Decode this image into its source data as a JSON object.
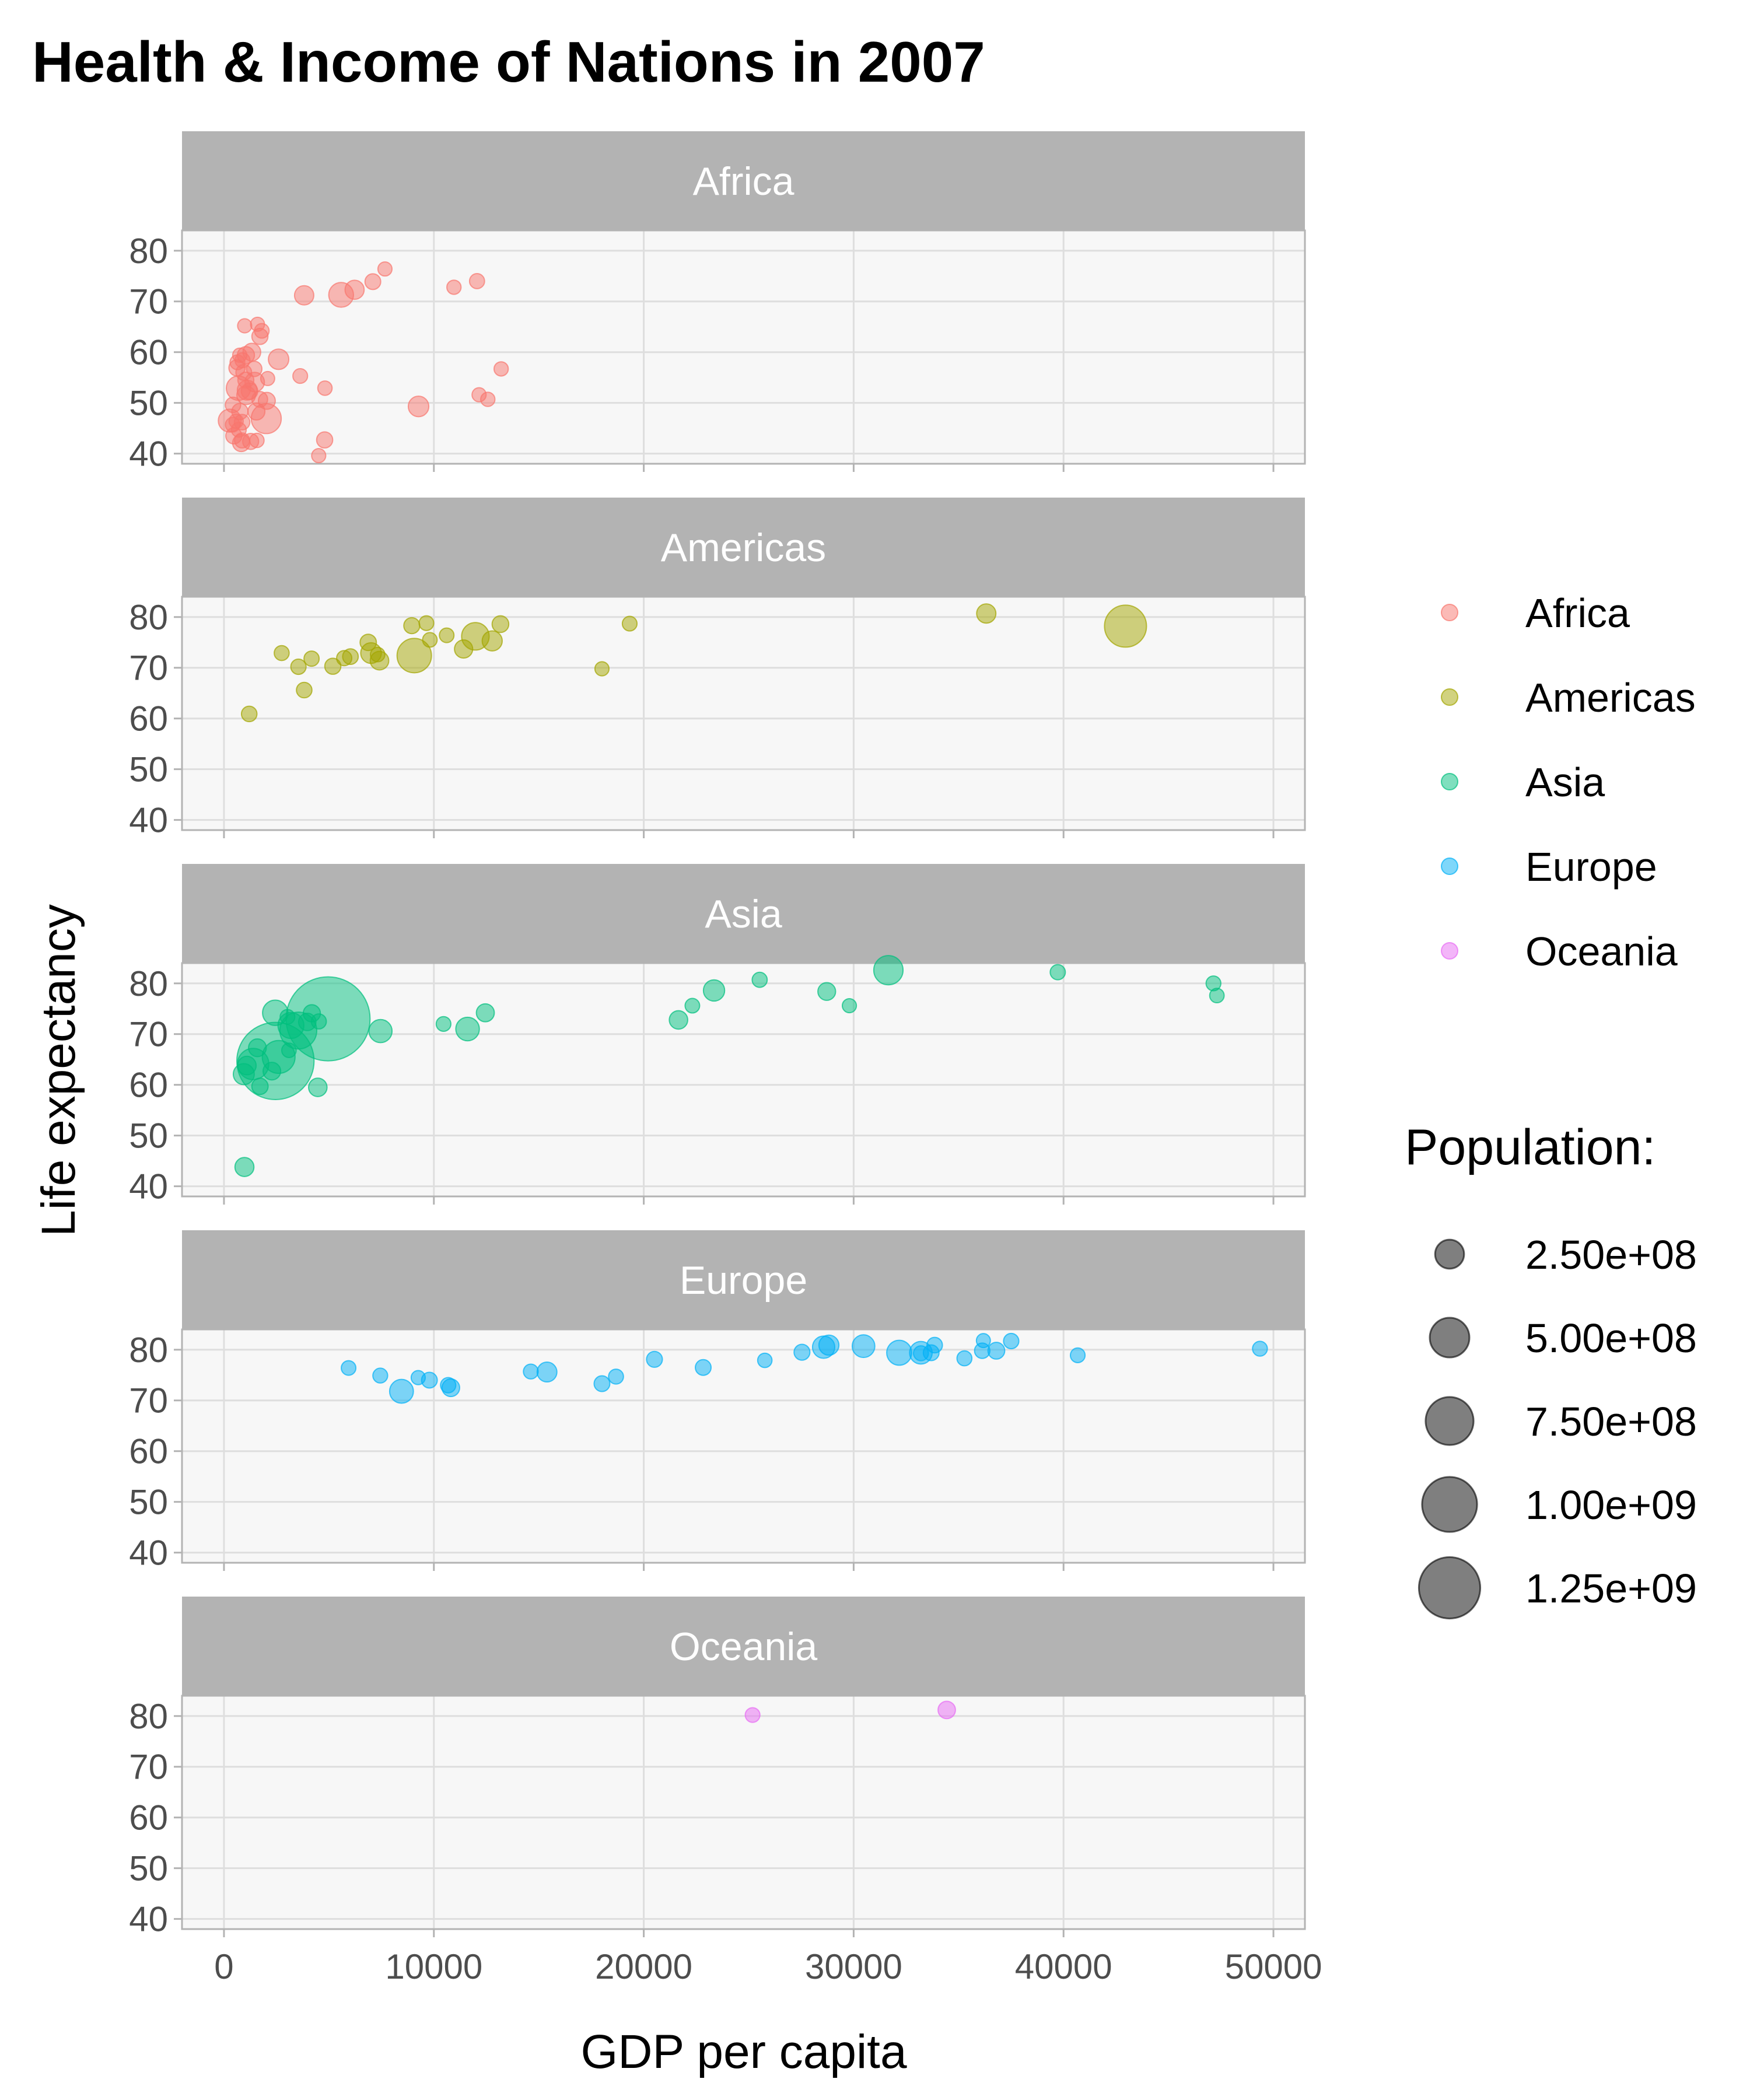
{
  "chart_data": {
    "type": "scatter",
    "title": "Health & Income of Nations in 2007",
    "xlabel": "GDP per capita",
    "ylabel": "Life expectancy",
    "xlim": [
      -2000,
      51500
    ],
    "ylim": [
      38,
      84
    ],
    "x_ticks": [
      0,
      10000,
      20000,
      30000,
      40000,
      50000
    ],
    "y_ticks": [
      40,
      50,
      60,
      70,
      80
    ],
    "grid": true,
    "facet_by": "continent",
    "color_legend": {
      "position": "right",
      "entries": [
        {
          "name": "Africa",
          "color": "#F8766D"
        },
        {
          "name": "Americas",
          "color": "#A3A500"
        },
        {
          "name": "Asia",
          "color": "#00BF7D"
        },
        {
          "name": "Europe",
          "color": "#00B0F6"
        },
        {
          "name": "Oceania",
          "color": "#E76BF3"
        }
      ]
    },
    "size_legend": {
      "title": "Population:",
      "position": "right",
      "entries": [
        {
          "label": "2.50e+08",
          "value": 250000000
        },
        {
          "label": "5.00e+08",
          "value": 500000000
        },
        {
          "label": "7.50e+08",
          "value": 750000000
        },
        {
          "label": "1.00e+09",
          "value": 1000000000
        },
        {
          "label": "1.25e+09",
          "value": 1250000000
        }
      ]
    },
    "size_range_pop": [
      200000,
      1320000000
    ],
    "point_alpha": 0.5,
    "facets": [
      {
        "name": "Africa",
        "points": [
          {
            "x": 6223,
            "y": 72.3,
            "pop": 33300000
          },
          {
            "x": 4797,
            "y": 42.7,
            "pop": 12400000
          },
          {
            "x": 1441,
            "y": 56.7,
            "pop": 8100000
          },
          {
            "x": 12570,
            "y": 50.7,
            "pop": 1600000
          },
          {
            "x": 1217,
            "y": 52.3,
            "pop": 14300000
          },
          {
            "x": 430,
            "y": 49.6,
            "pop": 8400000
          },
          {
            "x": 2042,
            "y": 50.4,
            "pop": 17700000
          },
          {
            "x": 706,
            "y": 44.7,
            "pop": 4400000
          },
          {
            "x": 1704,
            "y": 50.7,
            "pop": 10200000
          },
          {
            "x": 986,
            "y": 65.2,
            "pop": 700000
          },
          {
            "x": 278,
            "y": 46.5,
            "pop": 64600000
          },
          {
            "x": 3633,
            "y": 55.3,
            "pop": 3800000
          },
          {
            "x": 1545,
            "y": 48.3,
            "pop": 18000000
          },
          {
            "x": 2082,
            "y": 54.8,
            "pop": 500000
          },
          {
            "x": 5581,
            "y": 71.3,
            "pop": 80300000
          },
          {
            "x": 12154,
            "y": 51.6,
            "pop": 600000
          },
          {
            "x": 641,
            "y": 58.0,
            "pop": 4900000
          },
          {
            "x": 691,
            "y": 52.9,
            "pop": 76500000
          },
          {
            "x": 13206,
            "y": 56.7,
            "pop": 1500000
          },
          {
            "x": 753,
            "y": 59.4,
            "pop": 1700000
          },
          {
            "x": 1327,
            "y": 60.0,
            "pop": 22900000
          },
          {
            "x": 943,
            "y": 56.0,
            "pop": 9900000
          },
          {
            "x": 579,
            "y": 46.4,
            "pop": 1500000
          },
          {
            "x": 1463,
            "y": 54.1,
            "pop": 35600000
          },
          {
            "x": 1569,
            "y": 42.6,
            "pop": 2000000
          },
          {
            "x": 415,
            "y": 45.7,
            "pop": 3200000
          },
          {
            "x": 12057,
            "y": 74.0,
            "pop": 6000000
          },
          {
            "x": 1045,
            "y": 59.4,
            "pop": 19200000
          },
          {
            "x": 759,
            "y": 48.3,
            "pop": 13300000
          },
          {
            "x": 1042,
            "y": 54.5,
            "pop": 12000000
          },
          {
            "x": 1803,
            "y": 64.2,
            "pop": 3300000
          },
          {
            "x": 10957,
            "y": 72.8,
            "pop": 1300000
          },
          {
            "x": 3820,
            "y": 71.2,
            "pop": 33800000
          },
          {
            "x": 824,
            "y": 42.1,
            "pop": 20000000
          },
          {
            "x": 4811,
            "y": 52.9,
            "pop": 2100000
          },
          {
            "x": 620,
            "y": 56.9,
            "pop": 12900000
          },
          {
            "x": 2014,
            "y": 46.9,
            "pop": 135000000
          },
          {
            "x": 7670,
            "y": 76.4,
            "pop": 800000
          },
          {
            "x": 863,
            "y": 46.2,
            "pop": 8900000
          },
          {
            "x": 1598,
            "y": 65.5,
            "pop": 200000
          },
          {
            "x": 1712,
            "y": 63.1,
            "pop": 12300000
          },
          {
            "x": 863,
            "y": 42.6,
            "pop": 6100000
          },
          {
            "x": 9270,
            "y": 49.3,
            "pop": 43900000
          },
          {
            "x": 2602,
            "y": 58.6,
            "pop": 42300000
          },
          {
            "x": 4513,
            "y": 39.6,
            "pop": 1100000
          },
          {
            "x": 1107,
            "y": 52.5,
            "pop": 38100000
          },
          {
            "x": 883,
            "y": 58.4,
            "pop": 5700000
          },
          {
            "x": 7093,
            "y": 73.9,
            "pop": 10300000
          },
          {
            "x": 1056,
            "y": 51.5,
            "pop": 29200000
          },
          {
            "x": 1271,
            "y": 42.4,
            "pop": 11700000
          },
          {
            "x": 470,
            "y": 43.5,
            "pop": 12300000
          }
        ]
      },
      {
        "name": "Americas",
        "points": [
          {
            "x": 12779,
            "y": 75.3,
            "pop": 40300000
          },
          {
            "x": 3822,
            "y": 65.6,
            "pop": 9100000
          },
          {
            "x": 9066,
            "y": 72.4,
            "pop": 190000000
          },
          {
            "x": 36319,
            "y": 80.7,
            "pop": 33400000
          },
          {
            "x": 13172,
            "y": 78.6,
            "pop": 16300000
          },
          {
            "x": 7007,
            "y": 72.9,
            "pop": 44200000
          },
          {
            "x": 9645,
            "y": 78.8,
            "pop": 4100000
          },
          {
            "x": 8948,
            "y": 78.3,
            "pop": 11400000
          },
          {
            "x": 6025,
            "y": 72.2,
            "pop": 9300000
          },
          {
            "x": 6873,
            "y": 75.0,
            "pop": 13800000
          },
          {
            "x": 5728,
            "y": 71.9,
            "pop": 6900000
          },
          {
            "x": 5186,
            "y": 70.3,
            "pop": 12600000
          },
          {
            "x": 1202,
            "y": 60.9,
            "pop": 8500000
          },
          {
            "x": 3548,
            "y": 70.2,
            "pop": 7500000
          },
          {
            "x": 7321,
            "y": 72.6,
            "pop": 2800000
          },
          {
            "x": 11978,
            "y": 76.2,
            "pop": 108700000
          },
          {
            "x": 2749,
            "y": 72.9,
            "pop": 5700000
          },
          {
            "x": 9809,
            "y": 75.5,
            "pop": 3200000
          },
          {
            "x": 4173,
            "y": 71.8,
            "pop": 6700000
          },
          {
            "x": 7409,
            "y": 71.4,
            "pop": 28700000
          },
          {
            "x": 19329,
            "y": 78.7,
            "pop": 3900000
          },
          {
            "x": 18009,
            "y": 69.8,
            "pop": 1100000
          },
          {
            "x": 42952,
            "y": 78.2,
            "pop": 301100000
          },
          {
            "x": 10611,
            "y": 76.4,
            "pop": 3400000
          },
          {
            "x": 11416,
            "y": 73.7,
            "pop": 26100000
          }
        ]
      },
      {
        "name": "Asia",
        "points": [
          {
            "x": 975,
            "y": 43.8,
            "pop": 31900000
          },
          {
            "x": 29796,
            "y": 75.6,
            "pop": 700000
          },
          {
            "x": 1391,
            "y": 64.1,
            "pop": 150400000
          },
          {
            "x": 1714,
            "y": 59.7,
            "pop": 14100000
          },
          {
            "x": 4959,
            "y": 73.0,
            "pop": 1318700000
          },
          {
            "x": 39725,
            "y": 82.2,
            "pop": 6900000
          },
          {
            "x": 2452,
            "y": 64.7,
            "pop": 1110400000
          },
          {
            "x": 3541,
            "y": 70.7,
            "pop": 223500000
          },
          {
            "x": 11606,
            "y": 71.0,
            "pop": 69500000
          },
          {
            "x": 4471,
            "y": 59.5,
            "pop": 27500000
          },
          {
            "x": 25523,
            "y": 80.7,
            "pop": 6400000
          },
          {
            "x": 31656,
            "y": 82.6,
            "pop": 127500000
          },
          {
            "x": 4519,
            "y": 72.5,
            "pop": 6100000
          },
          {
            "x": 1593,
            "y": 67.3,
            "pop": 23300000
          },
          {
            "x": 23348,
            "y": 78.6,
            "pop": 49000000
          },
          {
            "x": 47307,
            "y": 77.6,
            "pop": 2500000
          },
          {
            "x": 10461,
            "y": 72.0,
            "pop": 3900000
          },
          {
            "x": 12452,
            "y": 74.2,
            "pop": 24800000
          },
          {
            "x": 3096,
            "y": 66.8,
            "pop": 2900000
          },
          {
            "x": 944,
            "y": 62.1,
            "pop": 47800000
          },
          {
            "x": 1091,
            "y": 63.8,
            "pop": 28900000
          },
          {
            "x": 22316,
            "y": 75.6,
            "pop": 3200000
          },
          {
            "x": 2606,
            "y": 65.5,
            "pop": 169300000
          },
          {
            "x": 3190,
            "y": 71.7,
            "pop": 91100000
          },
          {
            "x": 21655,
            "y": 72.8,
            "pop": 27600000
          },
          {
            "x": 47143,
            "y": 80.0,
            "pop": 4600000
          },
          {
            "x": 3970,
            "y": 72.4,
            "pop": 20400000
          },
          {
            "x": 4185,
            "y": 74.1,
            "pop": 19300000
          },
          {
            "x": 28718,
            "y": 78.4,
            "pop": 23200000
          },
          {
            "x": 7458,
            "y": 70.6,
            "pop": 65100000
          },
          {
            "x": 2442,
            "y": 74.2,
            "pop": 85300000
          },
          {
            "x": 3025,
            "y": 73.4,
            "pop": 4000000
          },
          {
            "x": 2281,
            "y": 62.7,
            "pop": 22200000
          }
        ]
      },
      {
        "name": "Europe",
        "points": [
          {
            "x": 5937,
            "y": 76.4,
            "pop": 3600000
          },
          {
            "x": 36126,
            "y": 79.8,
            "pop": 8200000
          },
          {
            "x": 33693,
            "y": 79.4,
            "pop": 10400000
          },
          {
            "x": 7446,
            "y": 74.9,
            "pop": 4600000
          },
          {
            "x": 10681,
            "y": 73.0,
            "pop": 7300000
          },
          {
            "x": 14619,
            "y": 75.7,
            "pop": 4500000
          },
          {
            "x": 22833,
            "y": 76.5,
            "pop": 10200000
          },
          {
            "x": 35278,
            "y": 78.3,
            "pop": 5500000
          },
          {
            "x": 33207,
            "y": 79.3,
            "pop": 5200000
          },
          {
            "x": 30470,
            "y": 80.7,
            "pop": 61100000
          },
          {
            "x": 32170,
            "y": 79.4,
            "pop": 82400000
          },
          {
            "x": 27538,
            "y": 79.5,
            "pop": 10700000
          },
          {
            "x": 18009,
            "y": 73.3,
            "pop": 10000000
          },
          {
            "x": 36181,
            "y": 81.8,
            "pop": 300000
          },
          {
            "x": 40676,
            "y": 78.9,
            "pop": 4100000
          },
          {
            "x": 28570,
            "y": 80.5,
            "pop": 58100000
          },
          {
            "x": 9254,
            "y": 74.5,
            "pop": 700000
          },
          {
            "x": 36798,
            "y": 79.8,
            "pop": 16600000
          },
          {
            "x": 49357,
            "y": 80.2,
            "pop": 4600000
          },
          {
            "x": 15390,
            "y": 75.6,
            "pop": 38500000
          },
          {
            "x": 20510,
            "y": 78.1,
            "pop": 10600000
          },
          {
            "x": 10808,
            "y": 72.5,
            "pop": 22300000
          },
          {
            "x": 9787,
            "y": 74.0,
            "pop": 10200000
          },
          {
            "x": 18678,
            "y": 74.7,
            "pop": 5400000
          },
          {
            "x": 25768,
            "y": 77.9,
            "pop": 2000000
          },
          {
            "x": 28821,
            "y": 80.9,
            "pop": 40400000
          },
          {
            "x": 33860,
            "y": 80.9,
            "pop": 9000000
          },
          {
            "x": 37506,
            "y": 81.7,
            "pop": 7600000
          },
          {
            "x": 8458,
            "y": 71.8,
            "pop": 71200000
          },
          {
            "x": 33203,
            "y": 79.4,
            "pop": 60800000
          }
        ]
      },
      {
        "name": "Oceania",
        "points": [
          {
            "x": 34435,
            "y": 81.2,
            "pop": 20400000
          },
          {
            "x": 25185,
            "y": 80.2,
            "pop": 4100000
          }
        ]
      }
    ]
  }
}
